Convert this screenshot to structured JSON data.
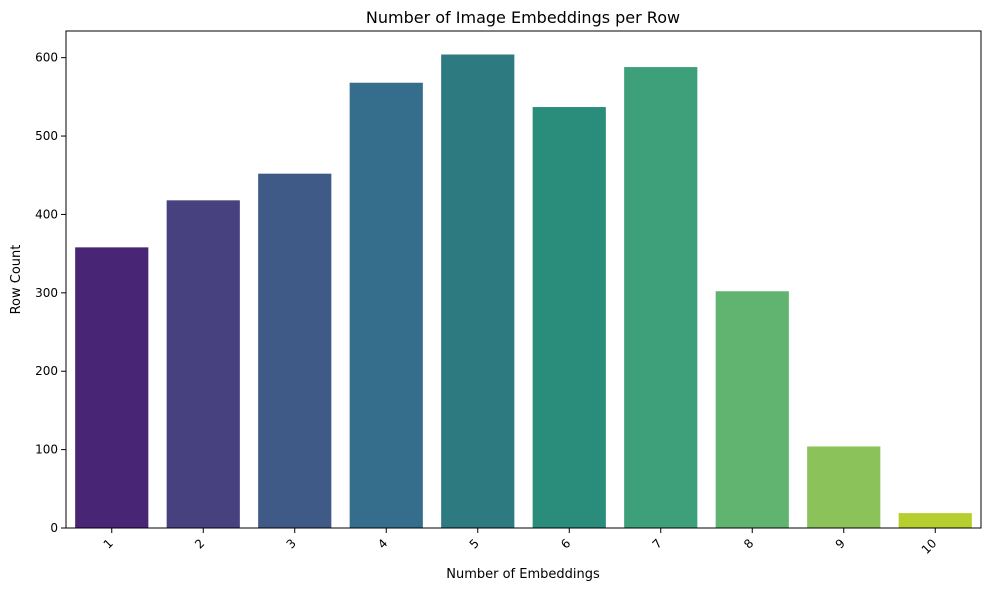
{
  "chart_data": {
    "type": "bar",
    "title": "Number of Image Embeddings per Row",
    "xlabel": "Number of Embeddings",
    "ylabel": "Row Count",
    "categories": [
      "1",
      "2",
      "3",
      "4",
      "5",
      "6",
      "7",
      "8",
      "9",
      "10"
    ],
    "values": [
      358,
      418,
      452,
      568,
      604,
      537,
      588,
      302,
      104,
      19
    ],
    "ylim": [
      0,
      634
    ],
    "yticks": [
      0,
      100,
      200,
      300,
      400,
      500,
      600
    ],
    "colors": [
      "#482575",
      "#47417f",
      "#3f5a86",
      "#356e8c",
      "#2d7a80",
      "#2a8d7c",
      "#3da07a",
      "#60b46f",
      "#8bc25a",
      "#b6ce2e"
    ],
    "grid": false,
    "legend": "none"
  }
}
